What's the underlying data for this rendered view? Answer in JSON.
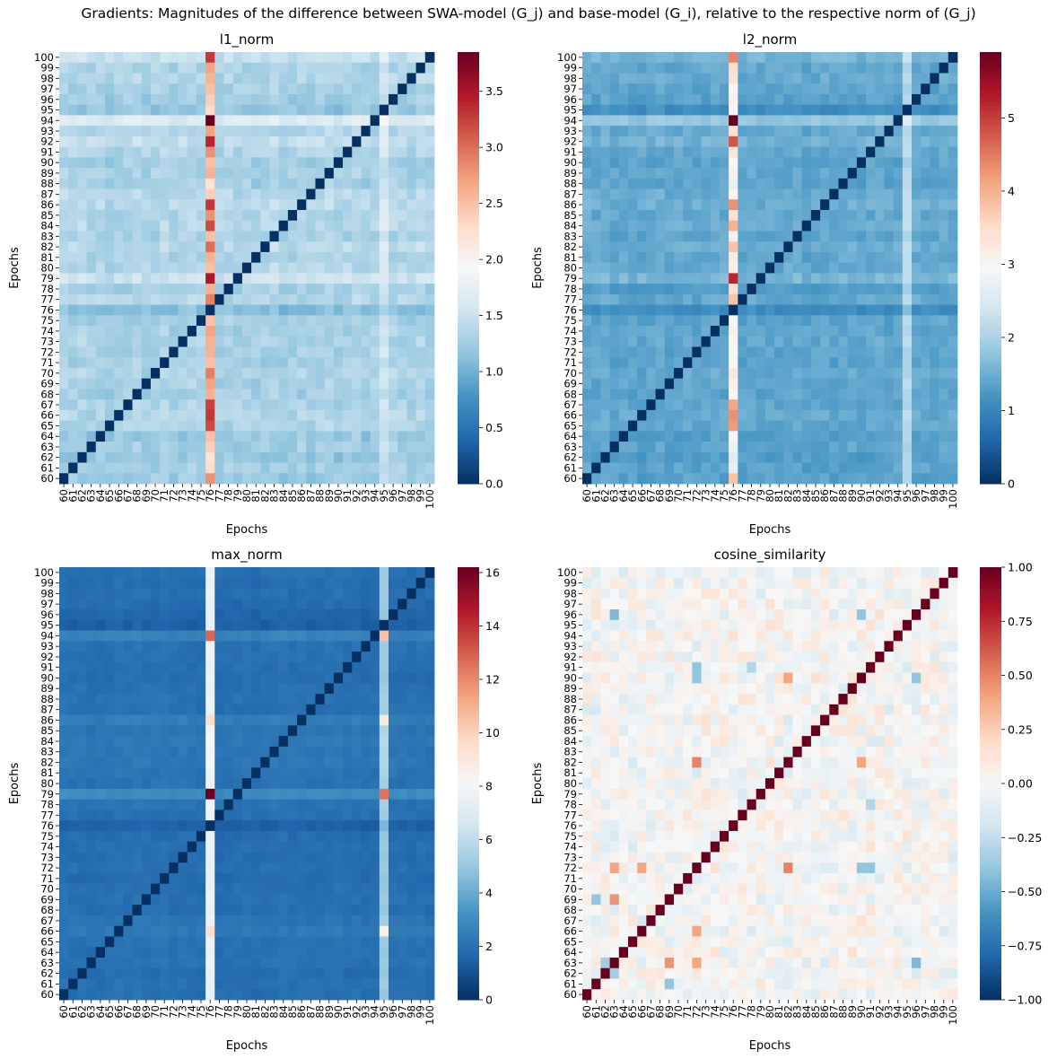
{
  "figure": {
    "title": "Gradients: Magnitudes of the difference between SWA-model (G_j) and base-model (G_i), relative to the respective norm of (G_j)"
  },
  "colormap": {
    "name": "RdBu_r",
    "stops": [
      "#053061",
      "#2166ac",
      "#4393c3",
      "#92c5de",
      "#d1e5f0",
      "#f7f7f7",
      "#fddbc7",
      "#f4a582",
      "#d6604d",
      "#b2182b",
      "#67001f"
    ]
  },
  "chart_data": [
    {
      "type": "heatmap",
      "title": "l1_norm",
      "xlabel": "Epochs",
      "ylabel": "Epochs",
      "epochs": [
        60,
        61,
        62,
        63,
        64,
        65,
        66,
        67,
        68,
        69,
        70,
        71,
        72,
        73,
        74,
        75,
        76,
        77,
        78,
        79,
        80,
        81,
        82,
        83,
        84,
        85,
        86,
        87,
        88,
        89,
        90,
        91,
        92,
        93,
        94,
        95,
        96,
        97,
        98,
        99,
        100
      ],
      "vmin": 0,
      "vmax": 3.85,
      "colorbar_ticks": [
        0.0,
        0.5,
        1.0,
        1.5,
        2.0,
        2.5,
        3.0,
        3.5
      ],
      "colorbar_tick_labels": [
        "0.0",
        "0.5",
        "1.0",
        "1.5",
        "2.0",
        "2.5",
        "3.0",
        "3.5"
      ],
      "diagonal": 0,
      "base": 1.25,
      "row_levels": {
        "60": 1.2,
        "61": 1.3,
        "62": 1.15,
        "63": 1.3,
        "64": 1.15,
        "65": 1.4,
        "66": 1.45,
        "67": 1.4,
        "68": 1.3,
        "69": 1.35,
        "70": 1.4,
        "71": 1.3,
        "72": 1.35,
        "73": 1.4,
        "74": 1.35,
        "75": 1.3,
        "76": 0.95,
        "77": 1.45,
        "78": 1.3,
        "79": 1.75,
        "80": 1.5,
        "81": 1.4,
        "82": 1.55,
        "83": 1.35,
        "84": 1.5,
        "85": 1.45,
        "86": 1.55,
        "87": 1.5,
        "88": 1.3,
        "89": 1.35,
        "90": 1.3,
        "91": 1.45,
        "92": 1.65,
        "93": 1.45,
        "94": 2.05,
        "95": 1.1,
        "96": 1.25,
        "97": 1.35,
        "98": 1.45,
        "99": 1.4,
        "100": 1.7
      },
      "col_levels": {
        "60": 1.3,
        "61": 1.25,
        "62": 1.3,
        "63": 1.2,
        "64": 1.25,
        "65": 1.15,
        "66": 1.2,
        "67": 1.25,
        "68": 1.3,
        "69": 1.2,
        "70": 1.25,
        "71": 1.3,
        "72": 1.2,
        "73": 1.25,
        "74": 1.3,
        "75": 1.25,
        "77": 1.2,
        "78": 1.25,
        "79": 1.2,
        "80": 1.25,
        "81": 1.2,
        "82": 1.25,
        "83": 1.3,
        "84": 1.15,
        "85": 1.2,
        "86": 1.25,
        "87": 1.2,
        "88": 1.25,
        "89": 1.3,
        "90": 1.2,
        "91": 1.25,
        "92": 1.3,
        "93": 1.2,
        "94": 1.25,
        "95": 1.7,
        "96": 1.3,
        "97": 1.25,
        "98": 1.2,
        "99": 1.3,
        "100": 1.25
      },
      "column_76": {
        "60": 2.8,
        "61": 2.3,
        "62": 2.2,
        "63": 2.4,
        "64": 2.5,
        "65": 3.2,
        "66": 3.3,
        "67": 3.25,
        "68": 2.6,
        "69": 2.7,
        "70": 2.9,
        "71": 2.5,
        "72": 2.6,
        "73": 2.6,
        "74": 2.7,
        "75": 2.5,
        "76": 0,
        "77": 2.9,
        "78": 2.6,
        "79": 3.5,
        "80": 2.5,
        "81": 2.6,
        "82": 3.0,
        "83": 2.5,
        "84": 3.2,
        "85": 2.8,
        "86": 3.3,
        "87": 2.4,
        "88": 2.2,
        "89": 2.6,
        "90": 2.5,
        "91": 2.8,
        "92": 3.4,
        "93": 2.7,
        "94": 3.85,
        "95": 2.3,
        "96": 2.4,
        "97": 2.5,
        "98": 2.6,
        "99": 2.7,
        "100": 3.3
      }
    },
    {
      "type": "heatmap",
      "title": "l2_norm",
      "xlabel": "Epochs",
      "ylabel": "Epochs",
      "epochs": [
        60,
        61,
        62,
        63,
        64,
        65,
        66,
        67,
        68,
        69,
        70,
        71,
        72,
        73,
        74,
        75,
        76,
        77,
        78,
        79,
        80,
        81,
        82,
        83,
        84,
        85,
        86,
        87,
        88,
        89,
        90,
        91,
        92,
        93,
        94,
        95,
        96,
        97,
        98,
        99,
        100
      ],
      "vmin": 0,
      "vmax": 5.9,
      "colorbar_ticks": [
        0,
        1,
        2,
        3,
        4,
        5
      ],
      "colorbar_tick_labels": [
        "0",
        "1",
        "2",
        "3",
        "4",
        "5"
      ],
      "diagonal": 0,
      "base": 1.35,
      "row_levels": {
        "60": 1.35,
        "61": 1.4,
        "62": 1.3,
        "63": 1.4,
        "64": 1.3,
        "65": 1.5,
        "66": 1.55,
        "67": 1.45,
        "68": 1.4,
        "69": 1.45,
        "70": 1.5,
        "71": 1.4,
        "72": 1.45,
        "73": 1.5,
        "74": 1.45,
        "75": 1.4,
        "76": 0.85,
        "77": 1.5,
        "78": 1.2,
        "79": 1.85,
        "80": 1.55,
        "81": 1.5,
        "82": 1.6,
        "83": 1.45,
        "84": 1.6,
        "85": 1.5,
        "86": 1.65,
        "87": 1.6,
        "88": 1.4,
        "89": 1.45,
        "90": 1.4,
        "91": 1.5,
        "92": 1.75,
        "93": 1.55,
        "94": 2.3,
        "95": 0.9,
        "96": 1.35,
        "97": 1.45,
        "98": 1.55,
        "99": 1.5,
        "100": 1.8
      },
      "col_levels": {
        "60": 1.4,
        "61": 1.35,
        "62": 1.4,
        "63": 1.3,
        "64": 1.35,
        "65": 1.3,
        "66": 1.3,
        "67": 1.35,
        "68": 1.4,
        "69": 1.3,
        "70": 1.35,
        "71": 1.4,
        "72": 1.3,
        "73": 1.35,
        "74": 1.4,
        "75": 1.35,
        "77": 1.3,
        "78": 1.35,
        "79": 1.3,
        "80": 1.35,
        "81": 1.3,
        "82": 1.35,
        "83": 1.4,
        "84": 1.25,
        "85": 1.3,
        "86": 1.35,
        "87": 1.3,
        "88": 1.35,
        "89": 1.4,
        "90": 1.3,
        "91": 1.35,
        "92": 1.4,
        "93": 1.3,
        "94": 1.35,
        "95": 2.7,
        "96": 1.4,
        "97": 1.35,
        "98": 1.3,
        "99": 1.4,
        "100": 1.35
      },
      "column_76": {
        "60": 3.8,
        "61": 2.7,
        "62": 2.6,
        "63": 2.8,
        "64": 2.9,
        "65": 4.2,
        "66": 4.3,
        "67": 4.1,
        "68": 3.0,
        "69": 3.1,
        "70": 3.3,
        "71": 2.9,
        "72": 3.0,
        "73": 3.0,
        "74": 3.1,
        "75": 2.9,
        "76": 0,
        "77": 3.8,
        "78": 3.4,
        "79": 5.2,
        "80": 3.1,
        "81": 3.2,
        "82": 3.8,
        "83": 3.1,
        "84": 4.0,
        "85": 3.4,
        "86": 4.3,
        "87": 3.0,
        "88": 2.7,
        "89": 3.1,
        "90": 3.0,
        "91": 3.3,
        "92": 4.8,
        "93": 3.4,
        "94": 5.9,
        "95": 2.9,
        "96": 3.1,
        "97": 3.0,
        "98": 3.4,
        "99": 3.5,
        "100": 4.4
      }
    },
    {
      "type": "heatmap",
      "title": "max_norm",
      "xlabel": "Epochs",
      "ylabel": "Epochs",
      "epochs": [
        60,
        61,
        62,
        63,
        64,
        65,
        66,
        67,
        68,
        69,
        70,
        71,
        72,
        73,
        74,
        75,
        76,
        77,
        78,
        79,
        80,
        81,
        82,
        83,
        84,
        85,
        86,
        87,
        88,
        89,
        90,
        91,
        92,
        93,
        94,
        95,
        96,
        97,
        98,
        99,
        100
      ],
      "vmin": 0,
      "vmax": 16.2,
      "colorbar_ticks": [
        0,
        2,
        4,
        6,
        8,
        10,
        12,
        14,
        16
      ],
      "colorbar_tick_labels": [
        "0",
        "2",
        "4",
        "6",
        "8",
        "10",
        "12",
        "14",
        "16"
      ],
      "diagonal": 0,
      "base": 1.9,
      "row_levels": {
        "60": 1.9,
        "61": 2.0,
        "62": 1.8,
        "63": 2.2,
        "64": 2.0,
        "65": 2.1,
        "66": 2.6,
        "67": 2.3,
        "68": 1.9,
        "69": 2.0,
        "70": 1.9,
        "71": 1.7,
        "72": 2.0,
        "73": 1.8,
        "74": 1.9,
        "75": 1.8,
        "76": 1.1,
        "77": 2.0,
        "78": 2.2,
        "79": 4.0,
        "80": 2.1,
        "81": 2.3,
        "82": 2.5,
        "83": 2.4,
        "84": 2.6,
        "85": 2.4,
        "86": 2.9,
        "87": 2.0,
        "88": 2.1,
        "89": 2.0,
        "90": 1.8,
        "91": 1.9,
        "92": 2.0,
        "93": 2.1,
        "94": 3.4,
        "95": 1.0,
        "96": 1.3,
        "97": 1.7,
        "98": 1.9,
        "99": 1.8,
        "100": 2.0
      },
      "col_levels": {
        "60": 2.0,
        "61": 1.9,
        "62": 2.0,
        "63": 1.8,
        "64": 1.9,
        "65": 2.0,
        "66": 2.1,
        "67": 2.0,
        "68": 2.2,
        "69": 2.1,
        "70": 2.0,
        "71": 2.1,
        "72": 1.9,
        "73": 2.0,
        "74": 1.9,
        "75": 1.8,
        "77": 1.8,
        "78": 1.9,
        "79": 1.9,
        "80": 2.0,
        "81": 1.8,
        "82": 1.9,
        "83": 2.0,
        "84": 2.1,
        "85": 1.9,
        "86": 2.0,
        "87": 1.9,
        "88": 1.9,
        "89": 2.0,
        "90": 2.1,
        "91": 1.9,
        "92": 2.0,
        "93": 1.8,
        "94": 1.9,
        "96": 2.0,
        "97": 1.9,
        "98": 1.8,
        "99": 1.9,
        "100": 1.8
      },
      "column_76": {
        "60": 7.5,
        "61": 7.4,
        "62": 7.5,
        "63": 7.6,
        "64": 7.5,
        "65": 7.6,
        "66": 9.5,
        "67": 7.6,
        "68": 7.5,
        "69": 7.6,
        "70": 7.5,
        "71": 7.4,
        "72": 7.5,
        "73": 7.5,
        "74": 7.6,
        "75": 7.5,
        "76": 0,
        "77": 7.6,
        "78": 7.8,
        "79": 16.2,
        "80": 7.6,
        "81": 7.7,
        "82": 7.9,
        "83": 7.8,
        "84": 8.0,
        "85": 7.9,
        "86": 9.6,
        "87": 7.6,
        "88": 7.6,
        "89": 7.5,
        "90": 7.6,
        "91": 7.5,
        "92": 7.6,
        "93": 7.6,
        "94": 12.8,
        "95": 7.4,
        "96": 7.5,
        "97": 7.5,
        "98": 7.6,
        "99": 7.5,
        "100": 7.6
      },
      "column_95": {
        "60": 5.0,
        "61": 5.2,
        "62": 5.0,
        "63": 5.1,
        "64": 5.0,
        "65": 5.2,
        "66": 8.6,
        "67": 5.3,
        "68": 5.0,
        "69": 5.1,
        "70": 5.0,
        "71": 4.9,
        "72": 5.1,
        "73": 5.0,
        "74": 5.1,
        "75": 5.0,
        "76": 4.4,
        "77": 5.2,
        "78": 5.4,
        "79": 12.5,
        "80": 5.3,
        "81": 5.5,
        "82": 5.6,
        "83": 5.6,
        "84": 5.8,
        "85": 5.6,
        "86": 8.8,
        "87": 5.2,
        "88": 5.3,
        "89": 5.2,
        "90": 5.0,
        "91": 5.1,
        "92": 5.2,
        "93": 5.2,
        "94": 10.5,
        "95": 0,
        "96": 5.0,
        "97": 5.1,
        "98": 5.2,
        "99": 5.1,
        "100": 5.2
      }
    },
    {
      "type": "heatmap",
      "title": "cosine_similarity",
      "xlabel": "Epochs",
      "ylabel": "Epochs",
      "epochs": [
        60,
        61,
        62,
        63,
        64,
        65,
        66,
        67,
        68,
        69,
        70,
        71,
        72,
        73,
        74,
        75,
        76,
        77,
        78,
        79,
        80,
        81,
        82,
        83,
        84,
        85,
        86,
        87,
        88,
        89,
        90,
        91,
        92,
        93,
        94,
        95,
        96,
        97,
        98,
        99,
        100
      ],
      "vmin": -1.0,
      "vmax": 1.0,
      "colorbar_ticks": [
        -1.0,
        -0.75,
        -0.5,
        -0.25,
        0.0,
        0.25,
        0.5,
        0.75,
        1.0
      ],
      "colorbar_tick_labels": [
        "−1.00",
        "−0.75",
        "−0.50",
        "−0.25",
        "0.00",
        "0.25",
        "0.50",
        "0.75",
        "1.00"
      ],
      "diagonal": 1.0,
      "base": 0.0,
      "noise": 0.12,
      "special_cells": [
        {
          "x": 63,
          "y": 69,
          "v": 0.45
        },
        {
          "x": 69,
          "y": 63,
          "v": 0.45
        },
        {
          "x": 63,
          "y": 72,
          "v": 0.4
        },
        {
          "x": 72,
          "y": 63,
          "v": 0.4
        },
        {
          "x": 66,
          "y": 72,
          "v": 0.4
        },
        {
          "x": 72,
          "y": 66,
          "v": 0.4
        },
        {
          "x": 72,
          "y": 82,
          "v": 0.5
        },
        {
          "x": 82,
          "y": 72,
          "v": 0.5
        },
        {
          "x": 82,
          "y": 90,
          "v": 0.4
        },
        {
          "x": 90,
          "y": 82,
          "v": 0.4
        },
        {
          "x": 63,
          "y": 96,
          "v": -0.45
        },
        {
          "x": 96,
          "y": 63,
          "v": -0.45
        },
        {
          "x": 90,
          "y": 96,
          "v": -0.4
        },
        {
          "x": 96,
          "y": 90,
          "v": -0.4
        },
        {
          "x": 72,
          "y": 91,
          "v": -0.4
        },
        {
          "x": 91,
          "y": 72,
          "v": -0.4
        },
        {
          "x": 69,
          "y": 61,
          "v": -0.4
        },
        {
          "x": 61,
          "y": 69,
          "v": -0.4
        },
        {
          "x": 90,
          "y": 72,
          "v": -0.4
        },
        {
          "x": 72,
          "y": 90,
          "v": -0.4
        },
        {
          "x": 78,
          "y": 91,
          "v": -0.3
        },
        {
          "x": 91,
          "y": 78,
          "v": -0.3
        },
        {
          "x": 62,
          "y": 63,
          "v": -0.35
        },
        {
          "x": 63,
          "y": 62,
          "v": -0.35
        }
      ]
    }
  ]
}
